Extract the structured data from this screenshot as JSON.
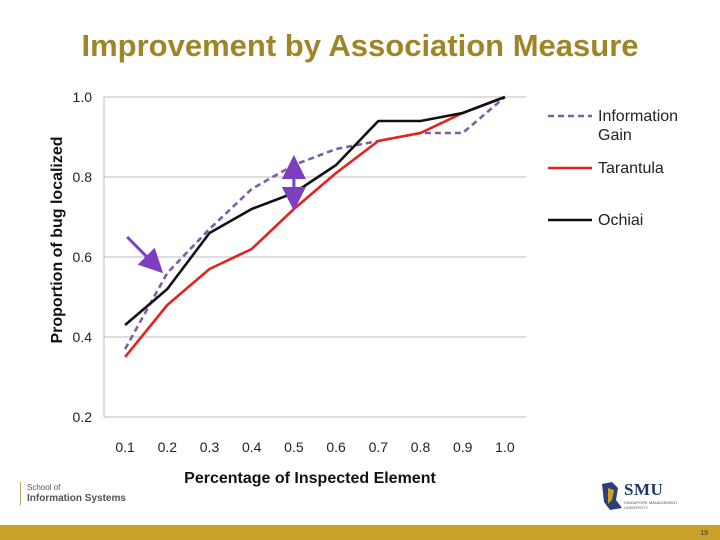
{
  "slide": {
    "title": "Improvement by Association Measure",
    "page_number": "19",
    "accent_color": "#c9a227",
    "title_color": "#a08528"
  },
  "footer": {
    "school_line1": "School of",
    "school_line2": "Information Systems",
    "smu_logo_text": "SMU",
    "smu_logo_subtext": "SINGAPORE MANAGEMENT UNIVERSITY"
  },
  "chart_data": {
    "type": "line",
    "title": "",
    "xlabel": "Percentage of Inspected Element",
    "ylabel": "Proportion of bug localized",
    "x": [
      0.1,
      0.2,
      0.3,
      0.4,
      0.5,
      0.6,
      0.7,
      0.8,
      0.9,
      1.0
    ],
    "x_tick_labels": [
      "0.1",
      "0.2",
      "0.3",
      "0.4",
      "0.5",
      "0.6",
      "0.7",
      "0.8",
      "0.9",
      "1.0"
    ],
    "y_tick_labels": [
      "0.2",
      "0.4",
      "0.6",
      "0.8",
      "1.0"
    ],
    "y_ticks": [
      0.2,
      0.4,
      0.6,
      0.8,
      1.0
    ],
    "xlim": [
      0.05,
      1.05
    ],
    "ylim": [
      0.2,
      1.0
    ],
    "grid": "horizontal",
    "legend_position": "right",
    "series": [
      {
        "name": "Information Gain",
        "color": "#7b5ea7",
        "dash": "dashed",
        "values": [
          0.37,
          0.56,
          0.67,
          0.77,
          0.83,
          0.87,
          0.89,
          0.91,
          0.91,
          1.0
        ]
      },
      {
        "name": "Tarantula",
        "color": "#e0251e",
        "dash": "solid",
        "values": [
          0.35,
          0.48,
          0.57,
          0.62,
          0.72,
          0.81,
          0.89,
          0.91,
          0.96,
          1.0
        ]
      },
      {
        "name": "Ochiai",
        "color": "#111111",
        "dash": "solid",
        "values": [
          0.43,
          0.52,
          0.66,
          0.72,
          0.76,
          0.83,
          0.94,
          0.94,
          0.96,
          1.0
        ]
      }
    ],
    "annotations": [
      {
        "type": "arrow",
        "from": [
          0.105,
          0.65
        ],
        "to": [
          0.18,
          0.57
        ],
        "color": "#7b3fbf"
      },
      {
        "type": "double-arrow",
        "x": 0.5,
        "from_y": 0.76,
        "to_y": 0.84,
        "color": "#7b3fbf"
      }
    ]
  }
}
